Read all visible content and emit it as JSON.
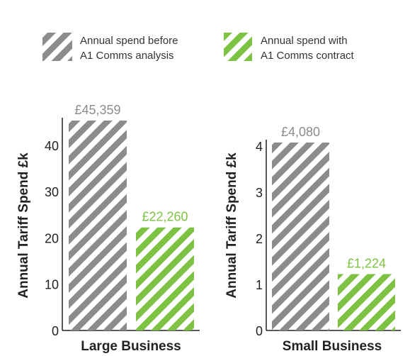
{
  "legend": {
    "entries": [
      {
        "series_index": 0,
        "lines": [
          "Annual spend before",
          "A1 Comms analysis"
        ]
      },
      {
        "series_index": 1,
        "lines": [
          "Annual spend with",
          "A1 Comms contract"
        ]
      }
    ]
  },
  "colors": {
    "before": "#8c8c8e",
    "with": "#7dc242",
    "axis": "#222222",
    "text": "#222222"
  },
  "chart_data": [
    {
      "type": "bar",
      "pattern": "diagonal-stripes",
      "categories": [
        "Large Business"
      ],
      "series": [
        {
          "name": "Annual spend before A1 Comms analysis",
          "values": [
            45.359
          ],
          "label": "£45,359",
          "color": "#8c8c8e"
        },
        {
          "name": "Annual spend with A1 Comms contract",
          "values": [
            22.26
          ],
          "label": "£22,260",
          "color": "#7dc242"
        }
      ],
      "xlabel": "Large Business",
      "ylabel": "Annual Tariff Spend £k",
      "ylim": [
        0,
        45.359
      ],
      "yticks": [
        0,
        10,
        20,
        30,
        40
      ],
      "grid": false,
      "legend_position": "top"
    },
    {
      "type": "bar",
      "pattern": "diagonal-stripes",
      "categories": [
        "Small Business"
      ],
      "series": [
        {
          "name": "Annual spend before A1 Comms analysis",
          "values": [
            4.08
          ],
          "label": "£4,080",
          "color": "#8c8c8e"
        },
        {
          "name": "Annual spend with A1 Comms contract",
          "values": [
            1.224
          ],
          "label": "£1,224",
          "color": "#7dc242"
        }
      ],
      "xlabel": "Small Business",
      "ylabel": "Annual Tariff Spend £k",
      "ylim": [
        0,
        4.08
      ],
      "yticks": [
        0,
        1,
        2,
        3,
        4
      ],
      "grid": false,
      "legend_position": "top"
    }
  ]
}
